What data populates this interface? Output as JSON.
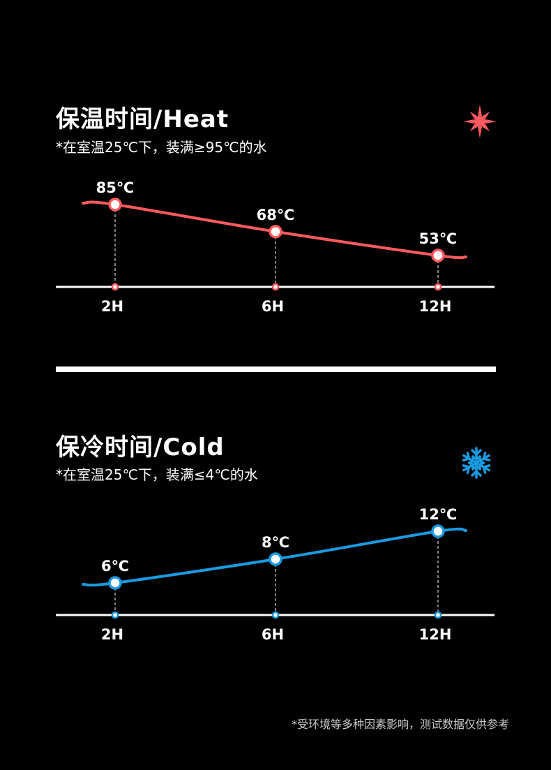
{
  "heat": {
    "title": "保温时间/Heat",
    "subtitle": "*在室温25℃下，装满≥95℃的水",
    "icon": "sun-icon"
  },
  "cold": {
    "title": "保冷时间/Cold",
    "subtitle": "*在室温25℃下，装满≤4℃的水",
    "icon": "snowflake-icon"
  },
  "footnote": "*受环境等多种因素影响，测试数据仅供参考",
  "colors": {
    "heat": "#ff5a5f",
    "cold": "#1a9ae0",
    "axis": "#ffffff",
    "background": "#000000"
  },
  "chart_data": [
    {
      "type": "line",
      "categories": [
        "2H",
        "6H",
        "12H"
      ],
      "values": [
        85,
        68,
        53
      ],
      "data_labels": [
        "85℃",
        "68℃",
        "53℃"
      ],
      "unit": "℃",
      "grid": false
    },
    {
      "type": "line",
      "categories": [
        "2H",
        "6H",
        "12H"
      ],
      "values": [
        6,
        8,
        12
      ],
      "data_labels": [
        "6℃",
        "8℃",
        "12℃"
      ],
      "unit": "℃",
      "grid": false
    }
  ]
}
